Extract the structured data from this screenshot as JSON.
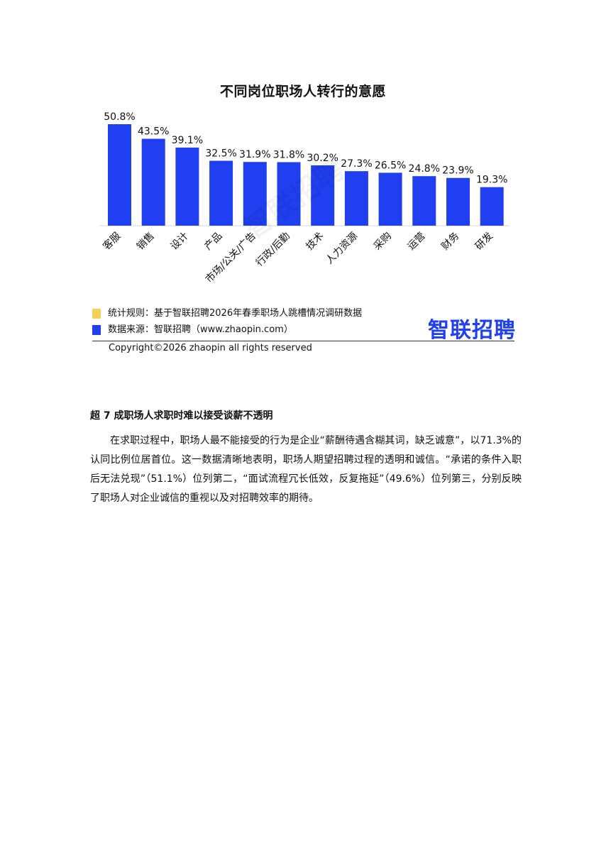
{
  "colors": {
    "bar": "#1f3ff0",
    "legend_rule": "#f3cf56",
    "legend_source": "#1f3ff0",
    "brand": "#1f3ff0"
  },
  "chart_data": {
    "type": "bar",
    "title": "不同岗位职场人转行的意愿",
    "categories": [
      "客服",
      "销售",
      "设计",
      "产品",
      "市场/公关/广告",
      "行政/后勤",
      "技术",
      "人力资源",
      "采购",
      "运营",
      "财务",
      "研发"
    ],
    "values": [
      50.8,
      43.5,
      39.1,
      32.5,
      31.9,
      31.8,
      30.2,
      27.3,
      26.5,
      24.8,
      23.9,
      19.3
    ],
    "value_labels": [
      "50.8%",
      "43.5%",
      "39.1%",
      "32.5%",
      "31.9%",
      "31.8%",
      "30.2%",
      "27.3%",
      "26.5%",
      "24.8%",
      "23.9%",
      "19.3%"
    ],
    "ylim": [
      0,
      50.8
    ],
    "grid": false,
    "legend": "bottom-left"
  },
  "watermark": "智联招聘",
  "legend": {
    "rule": "统计规则：基于智联招聘2026年春季职场人跳槽情况调研数据",
    "source": "数据来源：智联招聘（www.zhaopin.com）"
  },
  "logo": "智联招聘",
  "copyright": "Copyright©2026 zhaopin all rights reserved",
  "section_heading": "超 7 成职场人求职时难以接受谈薪不透明",
  "paragraph": "在求职过程中，职场人最不能接受的行为是企业“薪酬待遇含糊其词，缺乏诚意”，以71.3%的认同比例位居首位。这一数据清晰地表明，职场人期望招聘过程的透明和诚信。“承诺的条件入职后无法兑现”（51.1%）位列第二，“面试流程冗长低效，反复拖延”（49.6%）位列第三，分别反映了职场人对企业诚信的重视以及对招聘效率的期待。"
}
